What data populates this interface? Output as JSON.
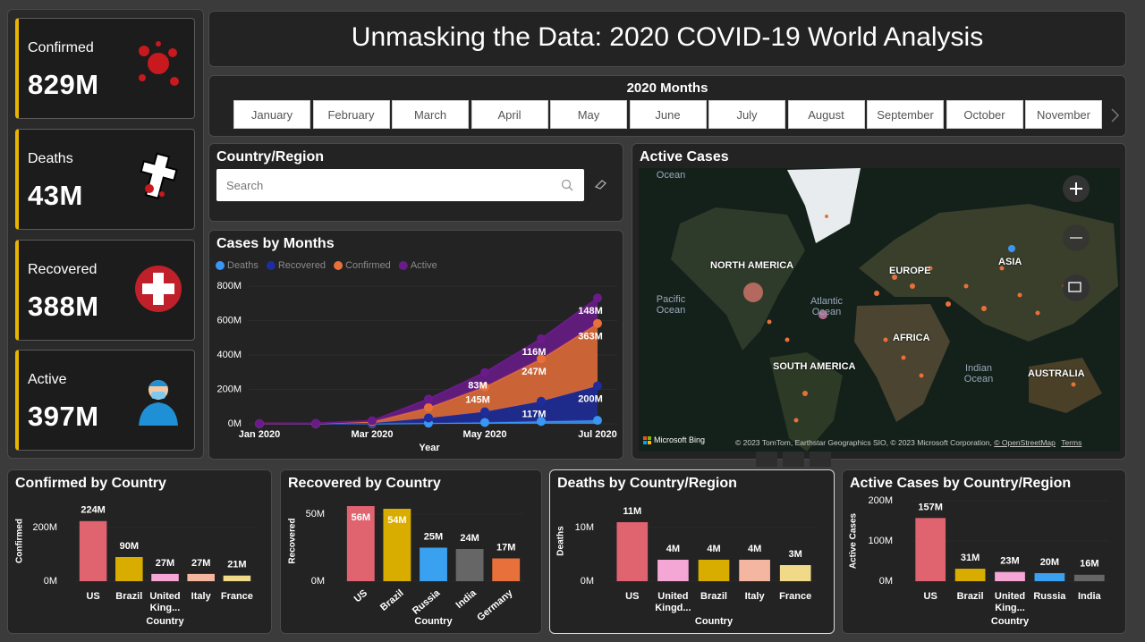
{
  "header": {
    "title": "Unmasking the Data: 2020 COVID-19 World Analysis"
  },
  "kpis": [
    {
      "label": "Confirmed",
      "value": "829M"
    },
    {
      "label": "Deaths",
      "value": "43M"
    },
    {
      "label": "Recovered",
      "value": "388M"
    },
    {
      "label": "Active",
      "value": "397M"
    }
  ],
  "months_slicer": {
    "title": "2020 Months",
    "months": [
      "January",
      "February",
      "March",
      "April",
      "May",
      "June",
      "July",
      "August",
      "September",
      "October",
      "November"
    ]
  },
  "country_filter": {
    "title": "Country/Region",
    "placeholder": "Search"
  },
  "map": {
    "title": "Active Cases",
    "labels": [
      "NORTH AMERICA",
      "EUROPE",
      "ASIA",
      "AFRICA",
      "SOUTH AMERICA",
      "AUSTRALIA",
      "Pacific Ocean",
      "Atlantic Ocean",
      "Indian Ocean",
      "Ocean"
    ],
    "logo": "Microsoft Bing",
    "attribution": "© 2023 TomTom, Earthstar Geographics SIO, © 2023 Microsoft Corporation,",
    "osm": "© OpenStreetMap",
    "terms": "Terms"
  },
  "chart_data": [
    {
      "type": "area",
      "stacked": true,
      "title": "Cases by Months",
      "x_label": "Year",
      "categories": [
        "Jan 2020",
        null,
        "Mar 2020",
        null,
        "May 2020",
        null,
        "Jul 2020"
      ],
      "ylim": [
        0,
        800
      ],
      "yticks": [
        {
          "value": 0,
          "label": "0M"
        },
        {
          "value": 200,
          "label": "200M"
        },
        {
          "value": 400,
          "label": "400M"
        },
        {
          "value": 600,
          "label": "600M"
        },
        {
          "value": 800,
          "label": "800M"
        }
      ],
      "series": [
        {
          "name": "Deaths",
          "color": "#3a96f5",
          "values": [
            0,
            0,
            1,
            4,
            8,
            14,
            20
          ]
        },
        {
          "name": "Recovered",
          "color": "#1f2d9c",
          "values": [
            0,
            0,
            3,
            30,
            62,
            117,
            200
          ],
          "value_labels": [
            null,
            null,
            null,
            null,
            null,
            "117M",
            "200M"
          ]
        },
        {
          "name": "Confirmed",
          "color": "#e8703a",
          "values": [
            1,
            2,
            8,
            60,
            145,
            247,
            363
          ],
          "value_labels": [
            null,
            null,
            null,
            null,
            "145M",
            "247M",
            "363M"
          ]
        },
        {
          "name": "Active",
          "color": "#6a1b8a",
          "values": [
            0,
            1,
            6,
            50,
            83,
            116,
            148
          ],
          "value_labels": [
            null,
            null,
            null,
            null,
            "83M",
            "116M",
            "148M"
          ]
        }
      ]
    },
    {
      "type": "bar",
      "title": "Confirmed by Country",
      "x_label": "Country",
      "y_label": "Confirmed",
      "categories": [
        "US",
        "Brazil",
        "United King...",
        "Italy",
        "France"
      ],
      "values": [
        224,
        90,
        27,
        27,
        21
      ],
      "value_labels": [
        "224M",
        "90M",
        "27M",
        "27M",
        "21M"
      ],
      "colors": [
        "#e06470",
        "#d9ad00",
        "#f4a6d4",
        "#f4b6a0",
        "#f1d98a"
      ],
      "ylim": [
        0,
        300
      ],
      "yticks": [
        {
          "value": 0,
          "label": "0M"
        },
        {
          "value": 200,
          "label": "200M"
        }
      ]
    },
    {
      "type": "bar",
      "title": "Recovered by Country",
      "x_label": "Country",
      "y_label": "Recovered",
      "categories": [
        "US",
        "Brazil",
        "Russia",
        "India",
        "Germany"
      ],
      "values": [
        56,
        54,
        25,
        24,
        17
      ],
      "value_labels": [
        "56M",
        "54M",
        "25M",
        "24M",
        "17M"
      ],
      "colors": [
        "#e06470",
        "#d9ad00",
        "#3aa0f0",
        "#666666",
        "#e8703a"
      ],
      "ylim": [
        0,
        60
      ],
      "yticks": [
        {
          "value": 0,
          "label": "0M"
        },
        {
          "value": 50,
          "label": "50M"
        }
      ]
    },
    {
      "type": "bar",
      "title": "Deaths by Country/Region",
      "x_label": "Country",
      "y_label": "Deaths",
      "categories": [
        "US",
        "United Kingd...",
        "Brazil",
        "Italy",
        "France"
      ],
      "values": [
        11,
        4,
        4,
        4,
        3
      ],
      "value_labels": [
        "11M",
        "4M",
        "4M",
        "4M",
        "3M"
      ],
      "colors": [
        "#e06470",
        "#f4a6d4",
        "#d9ad00",
        "#f4b6a0",
        "#f1d98a"
      ],
      "ylim": [
        0,
        15
      ],
      "yticks": [
        {
          "value": 0,
          "label": "0M"
        },
        {
          "value": 10,
          "label": "10M"
        }
      ]
    },
    {
      "type": "bar",
      "title": "Active Cases by Country/Region",
      "x_label": "Country",
      "y_label": "Active Cases",
      "categories": [
        "US",
        "Brazil",
        "United King...",
        "Russia",
        "India"
      ],
      "values": [
        157,
        31,
        23,
        20,
        16
      ],
      "value_labels": [
        "157M",
        "31M",
        "23M",
        "20M",
        "16M"
      ],
      "colors": [
        "#e06470",
        "#d9ad00",
        "#f4a6d4",
        "#3aa0f0",
        "#666666"
      ],
      "ylim": [
        0,
        200
      ],
      "yticks": [
        {
          "value": 0,
          "label": "0M"
        },
        {
          "value": 100,
          "label": "100M"
        },
        {
          "value": 200,
          "label": "200M"
        }
      ]
    }
  ]
}
